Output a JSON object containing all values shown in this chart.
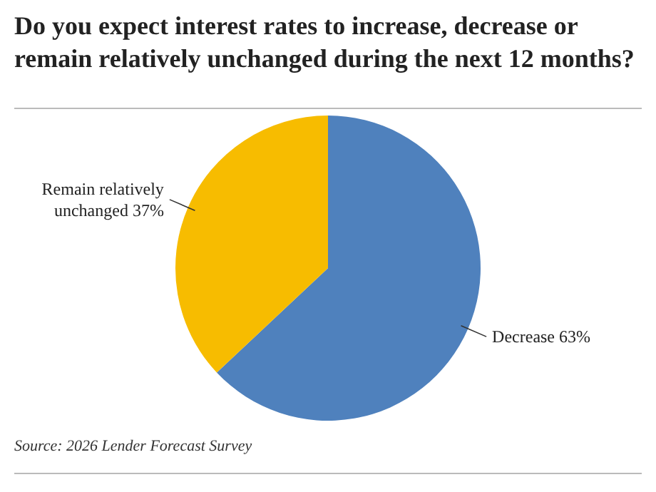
{
  "chart_data": {
    "type": "pie",
    "title": "Do you expect interest rates to increase, decrease or remain relatively unchanged during the next 12 months?",
    "categories": [
      "Decrease",
      "Remain relatively unchanged"
    ],
    "values": [
      63,
      37
    ],
    "colors": [
      "#4f81bd",
      "#f7bc00"
    ],
    "value_labels": [
      "63%",
      "37%"
    ],
    "annotations": [
      "Source: 2026 Lender Forecast Survey"
    ]
  }
}
